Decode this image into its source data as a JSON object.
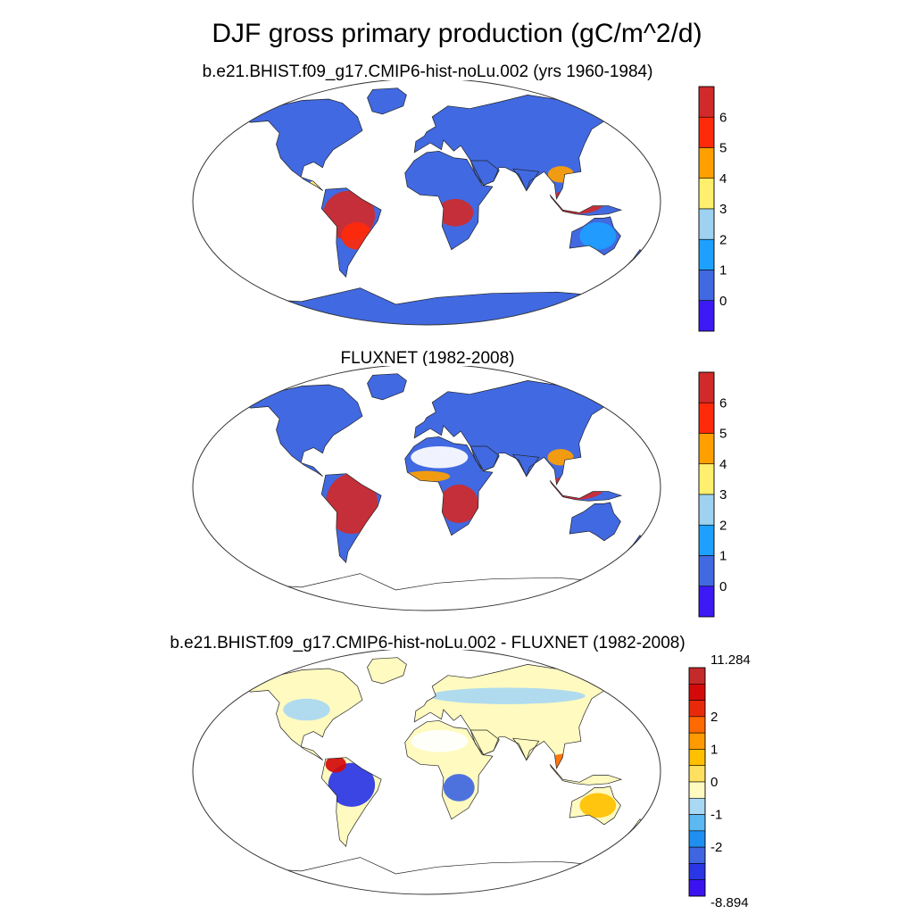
{
  "figure": {
    "title": "DJF gross primary production (gC/m^2/d)"
  },
  "panels": [
    {
      "title": "b.e21.BHIST.f09_g17.CMIP6-hist-noLu.002 (yrs 1960-1984)",
      "colorbar": {
        "colors": [
          "#3d1af5",
          "#4169e1",
          "#1ea0ff",
          "#9ed2f0",
          "#ffef6e",
          "#ffa000",
          "#ff2a0a",
          "#d02a2a"
        ],
        "tick_labels": [
          "0",
          "1",
          "2",
          "3",
          "4",
          "5",
          "6"
        ]
      }
    },
    {
      "title": "FLUXNET (1982-2008)",
      "colorbar": {
        "colors": [
          "#3d1af5",
          "#4169e1",
          "#1ea0ff",
          "#9ed2f0",
          "#ffef6e",
          "#ffa000",
          "#ff2a0a",
          "#d02a2a"
        ],
        "tick_labels": [
          "0",
          "1",
          "2",
          "3",
          "4",
          "5",
          "6"
        ]
      }
    },
    {
      "title": "b.e21.BHIST.f09_g17.CMIP6-hist-noLu.002 - FLUXNET (1982-2008)",
      "colorbar": {
        "colors": [
          "#3a13f0",
          "#2a35e6",
          "#3f66e0",
          "#1e8ff0",
          "#5cb8f0",
          "#a9d8f2",
          "#fffac0",
          "#ffe060",
          "#ffc000",
          "#ff9a00",
          "#ff6a00",
          "#e82a0a",
          "#d40a0a",
          "#c42a2a"
        ],
        "tick_labels": [
          "11.284",
          "2",
          "1",
          "0",
          "-1",
          "-2",
          "-8.894"
        ]
      }
    }
  ]
}
